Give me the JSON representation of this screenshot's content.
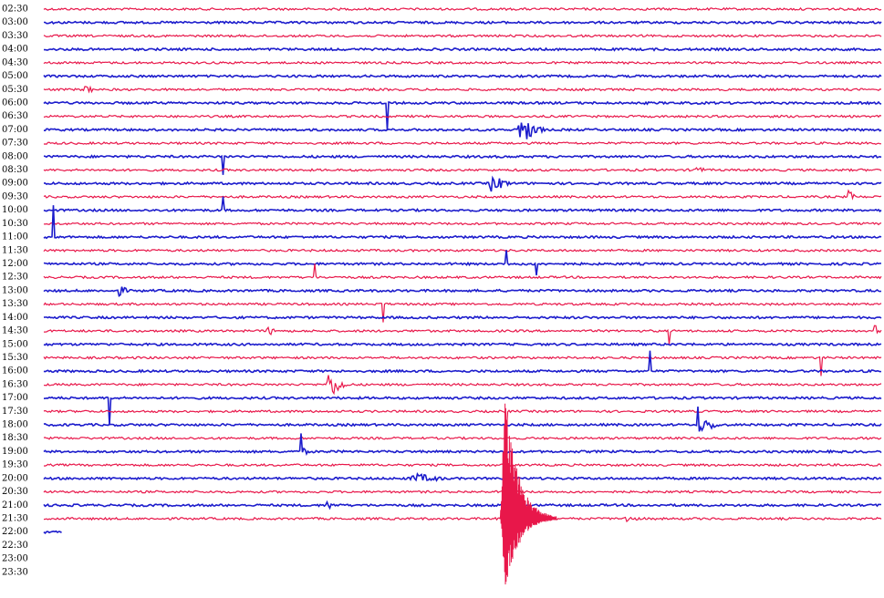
{
  "time_labels": [
    "02:30",
    "03:00",
    "03:30",
    "04:00",
    "04:30",
    "05:00",
    "05:30",
    "06:00",
    "06:30",
    "07:00",
    "07:30",
    "08:00",
    "08:30",
    "09:00",
    "09:30",
    "10:00",
    "10:30",
    "11:00",
    "11:30",
    "12:00",
    "12:30",
    "13:00",
    "13:30",
    "14:00",
    "14:30",
    "15:00",
    "15:30",
    "16:00",
    "16:30",
    "17:00",
    "17:30",
    "18:00",
    "18:30",
    "19:00",
    "19:30",
    "20:00",
    "20:30",
    "21:00",
    "21:30",
    "22:00",
    "22:30",
    "23:00",
    "23:30"
  ]
}
